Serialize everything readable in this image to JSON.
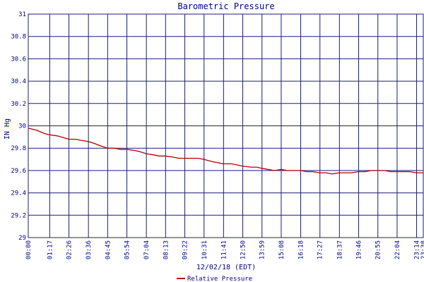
{
  "colors": {
    "grid": "#1c1c7c",
    "text": "#000088",
    "series": "#b30000",
    "background": "#ffffff"
  },
  "chart_data": {
    "type": "line",
    "title": "Barometric Pressure",
    "xlabel": "12/02/18 (EDT)",
    "ylabel": "IN Hg",
    "ylim": [
      29,
      31
    ],
    "yticks": [
      "29",
      "29.2",
      "29.4",
      "29.6",
      "29.8",
      "30",
      "30.2",
      "30.4",
      "30.6",
      "30.8",
      "31"
    ],
    "xticks": [
      "00:00",
      "01:17",
      "02:26",
      "03:36",
      "04:45",
      "05:54",
      "07:04",
      "08:13",
      "09:22",
      "10:31",
      "11:41",
      "12:50",
      "13:59",
      "15:08",
      "16:18",
      "17:27",
      "18:37",
      "19:46",
      "20:55",
      "22:04",
      "23:14",
      "23:38"
    ],
    "grid": true,
    "legend": "bottom-center",
    "series": [
      {
        "name": "Relative Pressure",
        "x": [
          "00:00",
          "00:30",
          "01:00",
          "01:17",
          "01:45",
          "02:26",
          "02:50",
          "03:10",
          "03:36",
          "04:00",
          "04:20",
          "04:45",
          "05:10",
          "05:30",
          "05:54",
          "06:20",
          "06:40",
          "07:04",
          "07:30",
          "07:50",
          "08:13",
          "08:40",
          "09:00",
          "09:22",
          "09:50",
          "10:10",
          "10:31",
          "11:00",
          "11:20",
          "11:41",
          "12:10",
          "12:30",
          "12:50",
          "13:20",
          "13:40",
          "13:59",
          "14:20",
          "14:45",
          "15:08",
          "15:30",
          "15:50",
          "16:18",
          "16:40",
          "17:00",
          "17:27",
          "17:50",
          "18:10",
          "18:37",
          "19:00",
          "19:20",
          "19:46",
          "20:10",
          "20:30",
          "20:55",
          "21:20",
          "21:40",
          "22:04",
          "22:30",
          "22:50",
          "23:14",
          "23:38"
        ],
        "y": [
          29.98,
          29.96,
          29.93,
          29.92,
          29.91,
          29.88,
          29.88,
          29.87,
          29.86,
          29.84,
          29.82,
          29.8,
          29.8,
          29.79,
          29.79,
          29.78,
          29.77,
          29.75,
          29.74,
          29.73,
          29.73,
          29.72,
          29.71,
          29.71,
          29.71,
          29.71,
          29.7,
          29.68,
          29.67,
          29.66,
          29.66,
          29.65,
          29.64,
          29.63,
          29.63,
          29.62,
          29.61,
          29.6,
          29.61,
          29.6,
          29.6,
          29.6,
          29.59,
          29.59,
          29.58,
          29.58,
          29.57,
          29.58,
          29.58,
          29.58,
          29.59,
          29.59,
          29.6,
          29.6,
          29.6,
          29.59,
          29.59,
          29.59,
          29.59,
          29.58,
          29.58
        ]
      }
    ]
  }
}
